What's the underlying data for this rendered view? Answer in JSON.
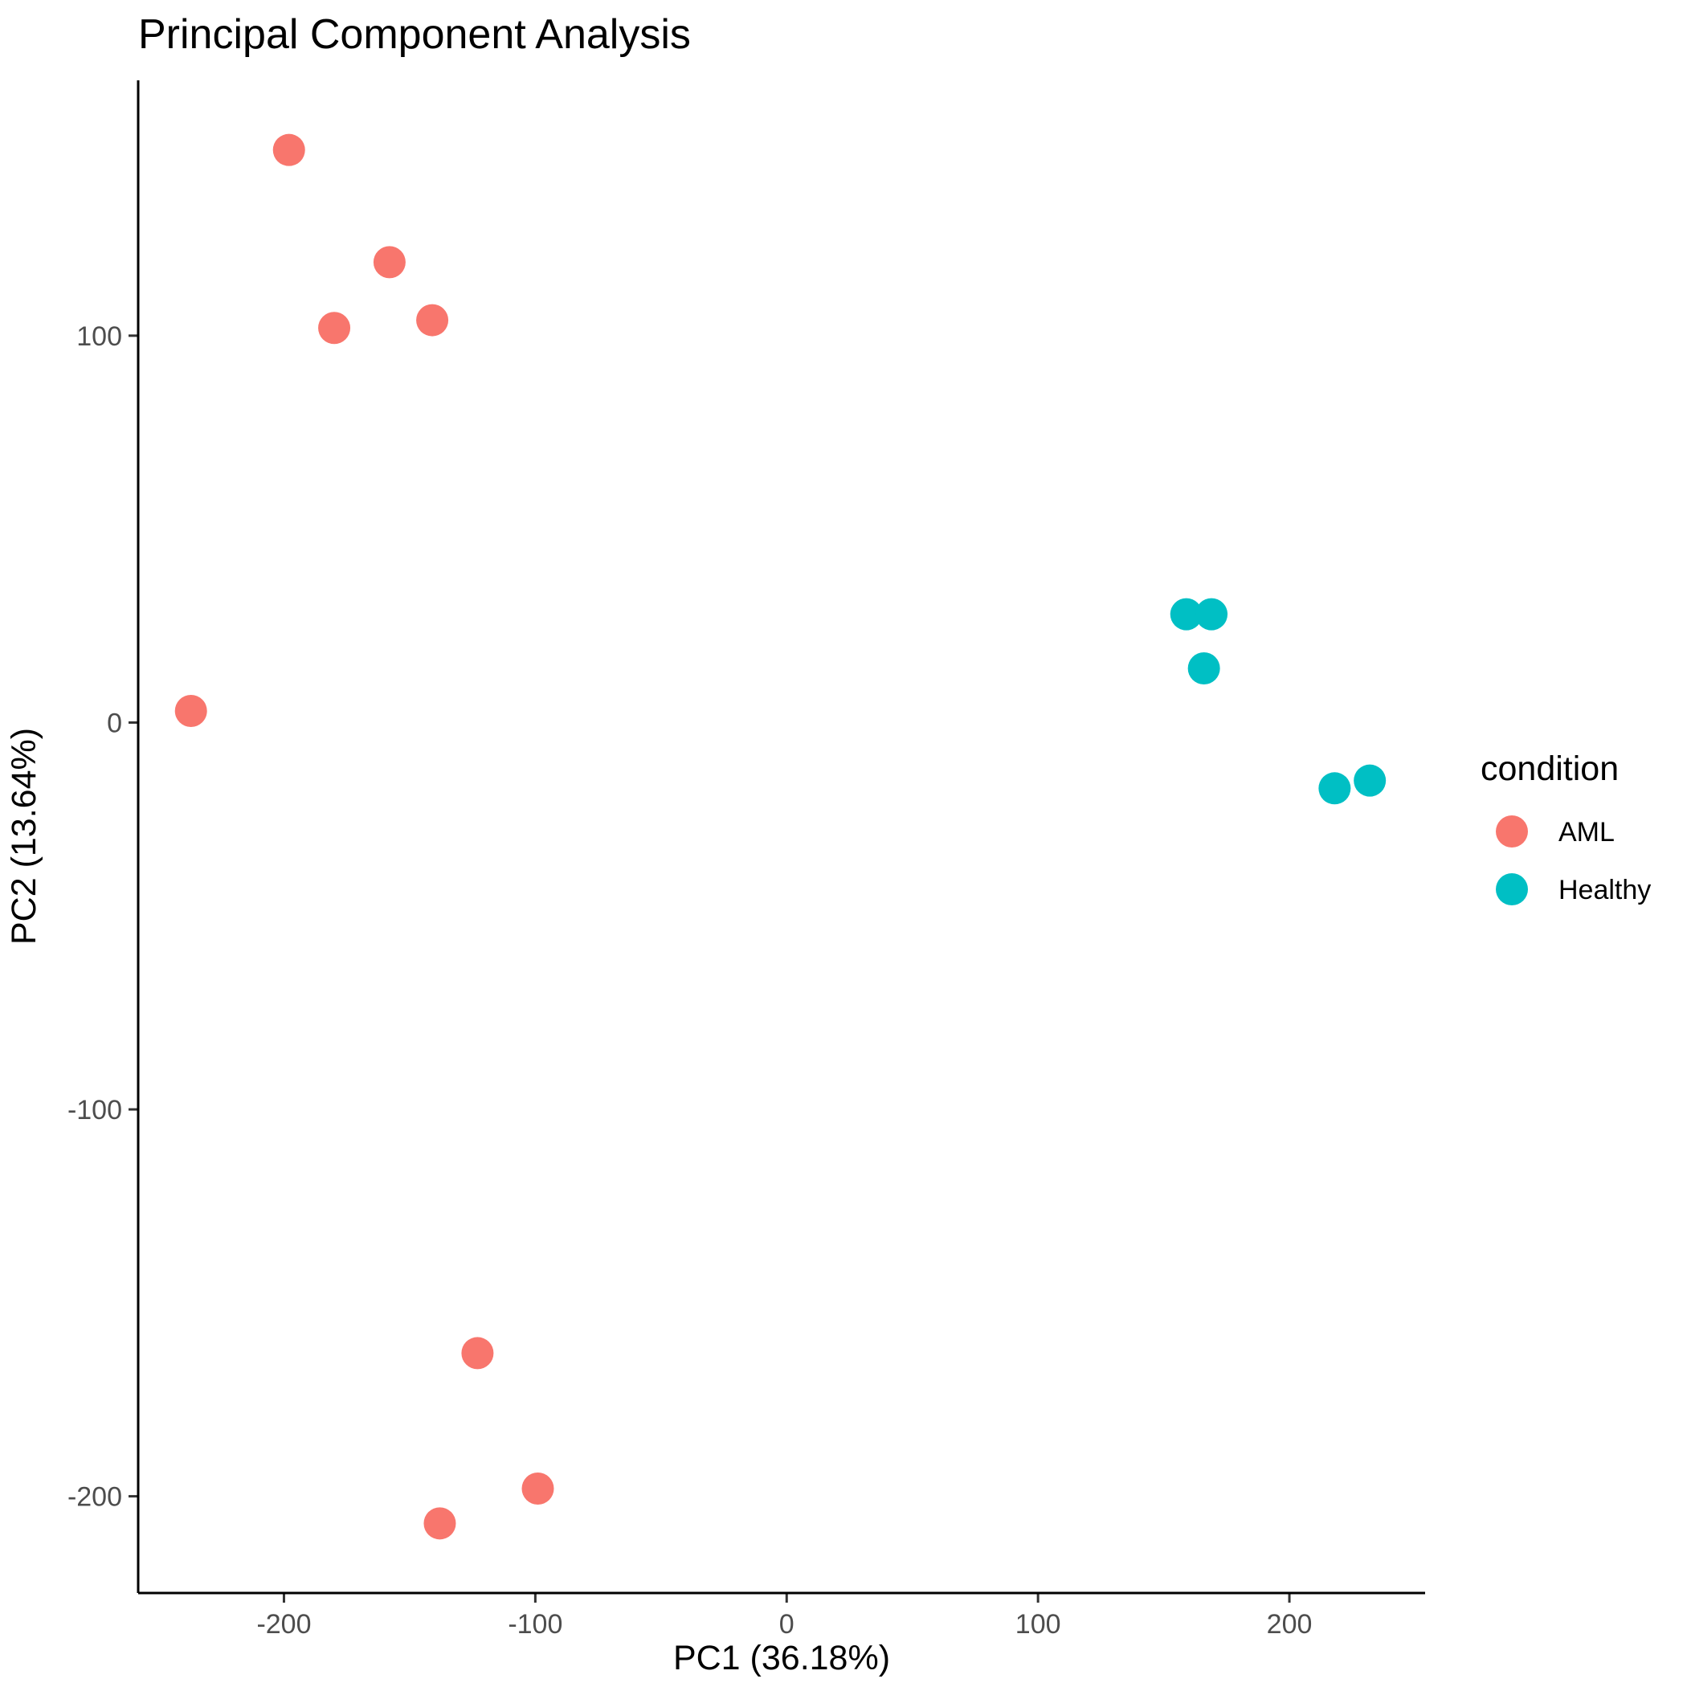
{
  "chart_data": {
    "type": "scatter",
    "title": "Principal Component Analysis",
    "xlabel": "PC1 (36.18%)",
    "ylabel": "PC2 (13.64%)",
    "xlim": [
      -258,
      254
    ],
    "ylim": [
      -225,
      166
    ],
    "xticks": [
      -200,
      -100,
      0,
      100,
      200
    ],
    "xtick_labels": [
      "-200",
      "-100",
      "0",
      "100",
      "200"
    ],
    "yticks": [
      -200,
      -100,
      0,
      100
    ],
    "ytick_labels": [
      "-200",
      "-100",
      "0",
      "100"
    ],
    "grid": false,
    "legend": {
      "title": "condition",
      "position": "right"
    },
    "series": [
      {
        "name": "AML",
        "color": "#F8766D",
        "points": [
          {
            "x": -198,
            "y": 148
          },
          {
            "x": -158,
            "y": 119
          },
          {
            "x": -180,
            "y": 102
          },
          {
            "x": -141,
            "y": 104
          },
          {
            "x": -237,
            "y": 3
          },
          {
            "x": -123,
            "y": -163
          },
          {
            "x": -99,
            "y": -198
          },
          {
            "x": -138,
            "y": -207
          }
        ]
      },
      {
        "name": "Healthy",
        "color": "#00BFC4",
        "points": [
          {
            "x": 159,
            "y": 28
          },
          {
            "x": 169,
            "y": 28
          },
          {
            "x": 166,
            "y": 14
          },
          {
            "x": 218,
            "y": -17
          },
          {
            "x": 232,
            "y": -15
          }
        ]
      }
    ]
  }
}
